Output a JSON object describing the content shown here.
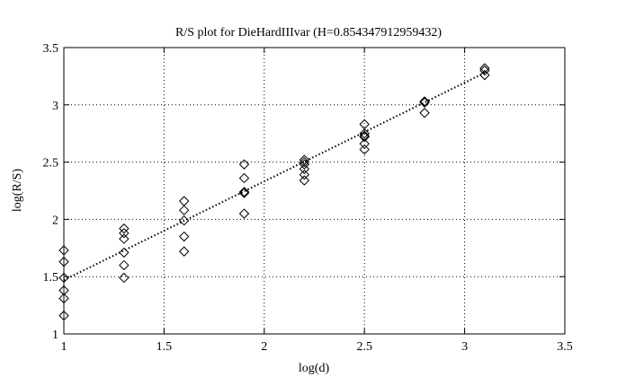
{
  "chart_data": {
    "type": "scatter",
    "title": "R/S plot for DieHardIIIvar (H=0.854347912959432)",
    "xlabel": "log(d)",
    "ylabel": "log(R/S)",
    "xlim": [
      1,
      3.5
    ],
    "ylim": [
      1,
      3.5
    ],
    "xticks": [
      1,
      1.5,
      2,
      2.5,
      3,
      3.5
    ],
    "yticks": [
      1,
      1.5,
      2,
      2.5,
      3,
      3.5
    ],
    "xtick_labels": [
      "1",
      "1.5",
      "2",
      "2.5",
      "3",
      "3.5"
    ],
    "ytick_labels": [
      "1",
      "1.5",
      "2",
      "2.5",
      "3",
      "3.5"
    ],
    "grid": true,
    "marker": "diamond",
    "series": [
      {
        "points": [
          [
            1.0,
            1.73
          ],
          [
            1.0,
            1.63
          ],
          [
            1.0,
            1.49
          ],
          [
            1.0,
            1.38
          ],
          [
            1.0,
            1.31
          ],
          [
            1.0,
            1.16
          ],
          [
            1.3,
            1.92
          ],
          [
            1.3,
            1.88
          ],
          [
            1.3,
            1.83
          ],
          [
            1.3,
            1.71
          ],
          [
            1.3,
            1.6
          ],
          [
            1.3,
            1.49
          ],
          [
            1.6,
            2.16
          ],
          [
            1.6,
            2.08
          ],
          [
            1.6,
            1.99
          ],
          [
            1.6,
            1.85
          ],
          [
            1.6,
            1.72
          ],
          [
            1.9,
            2.48
          ],
          [
            1.9,
            2.36
          ],
          [
            1.9,
            2.24
          ],
          [
            1.9,
            2.23
          ],
          [
            1.9,
            2.05
          ],
          [
            2.2,
            2.52
          ],
          [
            2.2,
            2.5
          ],
          [
            2.2,
            2.48
          ],
          [
            2.2,
            2.44
          ],
          [
            2.2,
            2.39
          ],
          [
            2.2,
            2.34
          ],
          [
            2.5,
            2.83
          ],
          [
            2.5,
            2.75
          ],
          [
            2.5,
            2.73
          ],
          [
            2.5,
            2.72
          ],
          [
            2.5,
            2.66
          ],
          [
            2.5,
            2.61
          ],
          [
            2.8,
            3.03
          ],
          [
            2.8,
            3.02
          ],
          [
            2.8,
            2.93
          ],
          [
            3.1,
            3.32
          ],
          [
            3.1,
            3.3
          ],
          [
            3.1,
            3.26
          ]
        ]
      }
    ],
    "fit_line": {
      "style": "dotted",
      "points": [
        [
          1.0,
          1.47
        ],
        [
          3.1,
          3.28
        ]
      ]
    }
  }
}
